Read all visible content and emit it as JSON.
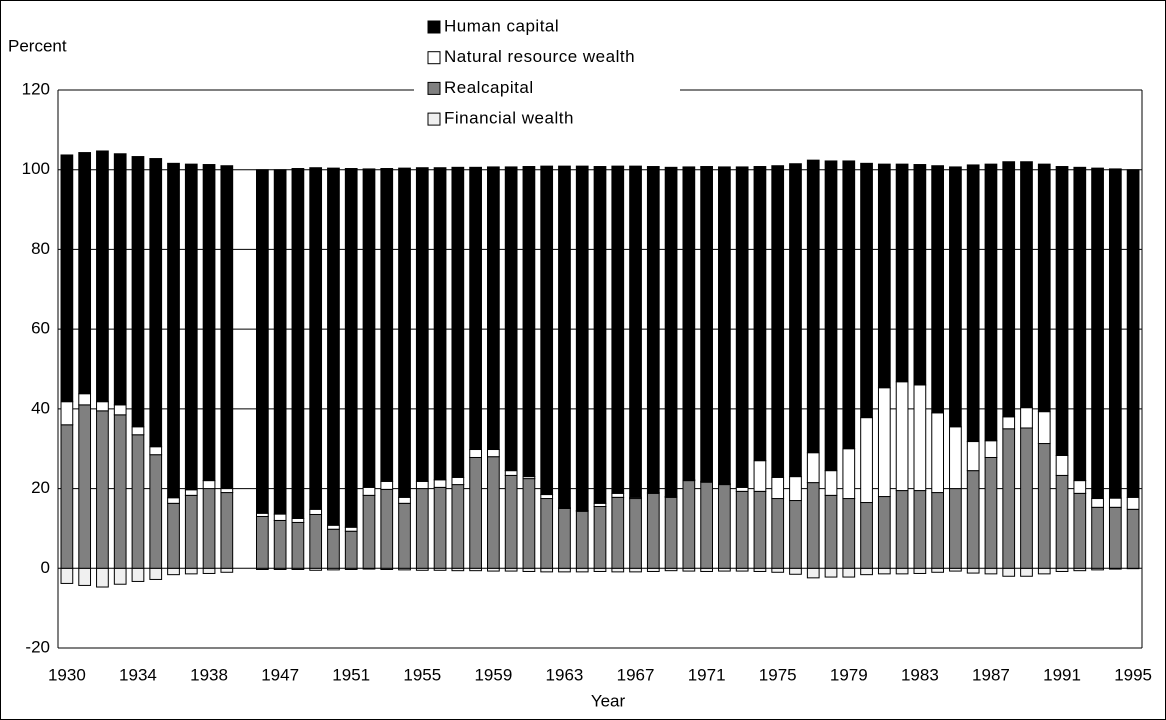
{
  "chart_data": {
    "type": "stacked_bar",
    "y_label": "Percent",
    "x_label": "Year",
    "ylim": [
      -20,
      120
    ],
    "yticks": [
      -20,
      0,
      20,
      40,
      60,
      80,
      100,
      120
    ],
    "grid": true,
    "legend": "top",
    "categories": [
      "1930",
      null,
      null,
      null,
      "1934",
      null,
      null,
      null,
      "1938",
      null,
      null,
      null,
      "1947",
      null,
      null,
      null,
      "1951",
      null,
      null,
      null,
      "1955",
      null,
      null,
      null,
      "1959",
      null,
      null,
      null,
      "1963",
      null,
      null,
      null,
      "1967",
      null,
      null,
      null,
      "1971",
      null,
      null,
      null,
      "1975",
      null,
      null,
      null,
      "1979",
      null,
      null,
      null,
      "1983",
      null,
      null,
      null,
      "1987",
      null,
      null,
      null,
      "1991",
      null,
      null,
      null,
      "1995"
    ],
    "series": [
      {
        "name": "Human capital",
        "color": "#000000",
        "values": [
          61.9,
          60.5,
          62.9,
          63,
          67.8,
          72.3,
          83.9,
          81.7,
          79.3,
          81,
          null,
          86.2,
          86.4,
          87.8,
          85.7,
          89.6,
          90,
          79.9,
          78.5,
          82.6,
          78.7,
          78.3,
          77.8,
          70.8,
          70.9,
          76.2,
          77.8,
          82.4,
          85.7,
          86.4,
          84.5,
          82.1,
          83.1,
          81.8,
          82.6,
          78.5,
          79,
          79.5,
          80.4,
          73.8,
          78.2,
          78.5,
          73.4,
          77.7,
          72.2,
          63.8,
          56.1,
          54.6,
          55.3,
          62,
          65.2,
          69.4,
          69.4,
          64,
          61.7,
          62.1,
          72.5,
          78.6,
          82.9,
          82.6,
          82.2
        ]
      },
      {
        "name": "Natural resource wealth",
        "color": "#ffffff",
        "values": [
          5.8,
          2.8,
          2.3,
          2.5,
          2,
          2,
          1.4,
          1.4,
          2,
          1,
          null,
          0.8,
          1.6,
          1,
          1.3,
          1,
          1,
          2,
          2,
          1.5,
          1.8,
          1.9,
          1.8,
          2,
          1.8,
          1.2,
          0.5,
          1,
          0.2,
          0.2,
          0.8,
          1,
          0.3,
          0.2,
          0.2,
          0.2,
          0.2,
          0.2,
          1,
          7.7,
          5.3,
          6,
          7.5,
          6.2,
          12.5,
          21.3,
          27.3,
          27.3,
          26.5,
          20,
          15.5,
          7.3,
          4.2,
          3,
          5.1,
          8,
          5,
          3.2,
          2.2,
          2.3,
          3
        ]
      },
      {
        "name": "Realcapital",
        "color": "#808080",
        "values": [
          36,
          41,
          39.5,
          38.5,
          33.5,
          28.5,
          16.3,
          18.3,
          20,
          19,
          null,
          13,
          12,
          11.5,
          13.5,
          9.8,
          9.3,
          18.3,
          19.8,
          16.3,
          20,
          20.3,
          21,
          27.8,
          28,
          23.3,
          22.5,
          17.5,
          15,
          14.3,
          15.5,
          17.8,
          17.5,
          18.8,
          17.8,
          22,
          21.6,
          21,
          19.3,
          19.3,
          17.5,
          17,
          21.5,
          18.3,
          17.5,
          16.5,
          18,
          19.5,
          19.5,
          19,
          20,
          24.5,
          27.8,
          35,
          35.2,
          31.3,
          23.3,
          18.8,
          15.3,
          15.3,
          14.8
        ]
      },
      {
        "name": "Financial wealth",
        "color": "#f0f0f0",
        "values": [
          -3.8,
          -4.3,
          -4.7,
          -4,
          -3.3,
          -2.8,
          -1.6,
          -1.4,
          -1.3,
          -1,
          null,
          -0.3,
          -0.3,
          -0.3,
          -0.5,
          -0.4,
          -0.3,
          -0.2,
          -0.3,
          -0.4,
          -0.5,
          -0.5,
          -0.6,
          -0.6,
          -0.7,
          -0.7,
          -0.8,
          -0.9,
          -0.9,
          -0.9,
          -0.8,
          -0.9,
          -0.9,
          -0.8,
          -0.6,
          -0.7,
          -0.8,
          -0.7,
          -0.7,
          -0.8,
          -1,
          -1.5,
          -2.4,
          -2.2,
          -2.2,
          -1.6,
          -1.4,
          -1.4,
          -1.3,
          -1,
          -0.7,
          -1.2,
          -1.4,
          -2,
          -2,
          -1.4,
          -0.8,
          -0.6,
          -0.4,
          -0.2,
          -0.1
        ]
      }
    ]
  }
}
